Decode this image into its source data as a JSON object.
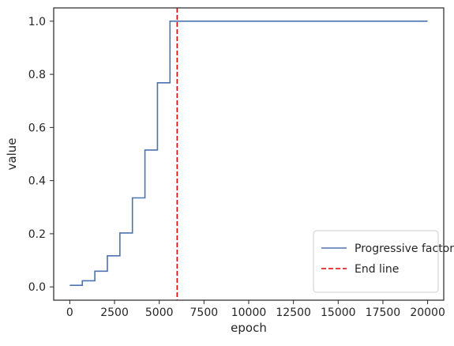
{
  "chart_data": {
    "type": "line",
    "title": "",
    "xlabel": "epoch",
    "ylabel": "value",
    "xlim": [
      -900,
      20900
    ],
    "ylim": [
      -0.05,
      1.05
    ],
    "x_ticks": [
      0,
      2500,
      5000,
      7500,
      10000,
      12500,
      15000,
      17500,
      20000
    ],
    "y_ticks": [
      0.0,
      0.2,
      0.4,
      0.6,
      0.8,
      1.0
    ],
    "x_tick_labels": [
      "0",
      "2500",
      "5000",
      "7500",
      "10000",
      "12500",
      "15000",
      "17500",
      "20000"
    ],
    "y_tick_labels": [
      "0.0",
      "0.2",
      "0.4",
      "0.6",
      "0.8",
      "1.0"
    ],
    "grid": false,
    "legend_position": "lower-right",
    "series": [
      {
        "name": "Progressive factor",
        "style": "step",
        "color": "#4c72b0",
        "x": [
          0,
          700,
          1400,
          2100,
          2800,
          3500,
          4200,
          4900,
          5600,
          20000
        ],
        "y": [
          0.006,
          0.023,
          0.059,
          0.117,
          0.203,
          0.335,
          0.515,
          0.768,
          1.0,
          1.0
        ]
      },
      {
        "name": "End line",
        "style": "dashed-vertical",
        "color": "#e00000",
        "x": 6000
      }
    ]
  }
}
